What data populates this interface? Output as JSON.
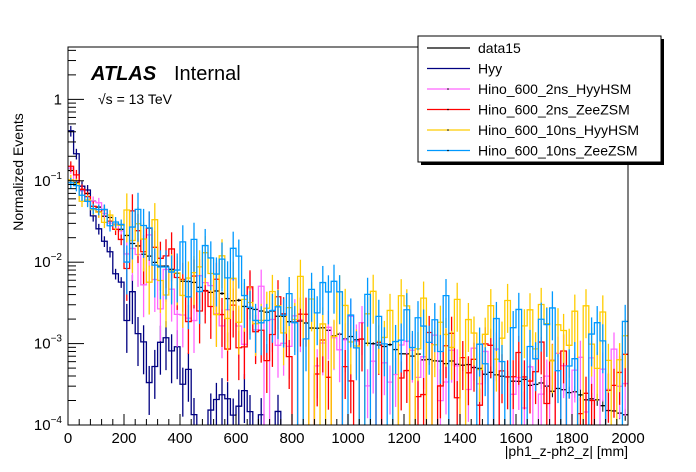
{
  "chart_data": {
    "type": "line",
    "subtype": "histogram-step-log",
    "title": "",
    "xlabel": "|ph1_z-ph2_z| [mm]",
    "ylabel": "Normalized Events",
    "xlim": [
      0,
      2000
    ],
    "ylim": [
      0.0001,
      4.4
    ],
    "yscale": "log",
    "grid": false,
    "x_ticks": [
      0,
      200,
      400,
      600,
      800,
      1000,
      1200,
      1400,
      1600,
      1800,
      2000
    ],
    "x_tick_labels": [
      "0",
      "200",
      "400",
      "600",
      "800",
      "1000",
      "1200",
      "1400",
      "1600",
      "1800",
      "2000"
    ],
    "y_ticks": [
      0.0001,
      0.001,
      0.01,
      0.1,
      1
    ],
    "y_tick_labels": [
      {
        "base": "10",
        "exp": "−4"
      },
      {
        "base": "10",
        "exp": "−3"
      },
      {
        "base": "10",
        "exp": "−2"
      },
      {
        "base": "10",
        "exp": "−1"
      },
      {
        "base": "1",
        "exp": ""
      }
    ],
    "annotations": {
      "experiment": "ATLAS",
      "status": "Internal",
      "energy": "√s = 13 TeV"
    },
    "legend_position": "top-right",
    "bin_width": 20,
    "series": [
      {
        "name": "data15",
        "color": "#000000",
        "style": "markers",
        "points": [
          [
            10,
            0.13
          ],
          [
            50,
            0.075
          ],
          [
            100,
            0.05
          ],
          [
            150,
            0.033
          ],
          [
            200,
            0.022
          ],
          [
            250,
            0.015
          ],
          [
            300,
            0.011
          ],
          [
            350,
            0.0085
          ],
          [
            400,
            0.0065
          ],
          [
            500,
            0.0045
          ],
          [
            600,
            0.0033
          ],
          [
            700,
            0.0025
          ],
          [
            800,
            0.0019
          ],
          [
            900,
            0.0015
          ],
          [
            1000,
            0.0012
          ],
          [
            1100,
            0.001
          ],
          [
            1200,
            0.0008
          ],
          [
            1300,
            0.00065
          ],
          [
            1400,
            0.00055
          ],
          [
            1500,
            0.00045
          ],
          [
            1600,
            0.00035
          ],
          [
            1700,
            0.0003
          ],
          [
            1800,
            0.00025
          ],
          [
            1900,
            0.00018
          ],
          [
            2000,
            0.00012
          ]
        ]
      },
      {
        "name": "Hyy",
        "color": "#000080",
        "style": "step",
        "points": [
          [
            10,
            0.4
          ],
          [
            30,
            0.2
          ],
          [
            50,
            0.1
          ],
          [
            100,
            0.035
          ],
          [
            150,
            0.012
          ],
          [
            200,
            0.004
          ],
          [
            250,
            0.0016
          ],
          [
            300,
            0.0008
          ],
          [
            350,
            0.0006
          ],
          [
            400,
            0.00028
          ],
          [
            450,
            0.0002
          ],
          [
            500,
            0.00014
          ],
          [
            550,
            0.00016
          ],
          [
            600,
            0.00013
          ],
          [
            650,
            0.0001
          ],
          [
            700,
            0.00012
          ],
          [
            750,
            0.0001
          ]
        ]
      },
      {
        "name": "Hino_600_2ns_HyyHSM",
        "color": "#ff66ff",
        "style": "step",
        "points": [
          [
            10,
            0.15
          ],
          [
            50,
            0.08
          ],
          [
            100,
            0.05
          ],
          [
            150,
            0.03
          ],
          [
            200,
            0.02
          ],
          [
            250,
            0.013
          ],
          [
            300,
            0.009
          ],
          [
            350,
            0.0065
          ],
          [
            400,
            0.005
          ],
          [
            500,
            0.0035
          ],
          [
            600,
            0.0025
          ],
          [
            700,
            0.0018
          ],
          [
            800,
            0.0014
          ],
          [
            1000,
            0.0009
          ],
          [
            1200,
            0.0006
          ],
          [
            1400,
            0.0005
          ],
          [
            1600,
            0.0004
          ],
          [
            1800,
            0.0004
          ],
          [
            2000,
            0.0003
          ]
        ]
      },
      {
        "name": "Hino_600_2ns_ZeeZSM",
        "color": "#ff0000",
        "style": "step",
        "points": [
          [
            10,
            0.14
          ],
          [
            50,
            0.085
          ],
          [
            100,
            0.052
          ],
          [
            150,
            0.032
          ],
          [
            200,
            0.021
          ],
          [
            250,
            0.013
          ],
          [
            300,
            0.009
          ],
          [
            350,
            0.006
          ],
          [
            400,
            0.0045
          ],
          [
            500,
            0.003
          ],
          [
            600,
            0.002
          ],
          [
            700,
            0.0016
          ],
          [
            800,
            0.0012
          ],
          [
            1000,
            0.0008
          ],
          [
            1200,
            0.0006
          ],
          [
            1400,
            0.0005
          ],
          [
            1600,
            0.0004
          ],
          [
            1800,
            0.0004
          ],
          [
            2000,
            0.0003
          ]
        ]
      },
      {
        "name": "Hino_600_10ns_HyyHSM",
        "color": "#ffcc00",
        "style": "step",
        "points": [
          [
            10,
            0.11
          ],
          [
            50,
            0.065
          ],
          [
            100,
            0.045
          ],
          [
            150,
            0.032
          ],
          [
            200,
            0.024
          ],
          [
            250,
            0.018
          ],
          [
            300,
            0.014
          ],
          [
            350,
            0.011
          ],
          [
            400,
            0.009
          ],
          [
            500,
            0.007
          ],
          [
            600,
            0.005
          ],
          [
            700,
            0.004
          ],
          [
            800,
            0.003
          ],
          [
            1000,
            0.0022
          ],
          [
            1200,
            0.0017
          ],
          [
            1400,
            0.0014
          ],
          [
            1600,
            0.0012
          ],
          [
            1800,
            0.0011
          ],
          [
            2000,
            0.001
          ]
        ]
      },
      {
        "name": "Hino_600_10ns_ZeeZSM",
        "color": "#0099ff",
        "style": "step",
        "points": [
          [
            10,
            0.11
          ],
          [
            50,
            0.068
          ],
          [
            100,
            0.047
          ],
          [
            150,
            0.033
          ],
          [
            200,
            0.024
          ],
          [
            250,
            0.018
          ],
          [
            300,
            0.014
          ],
          [
            350,
            0.011
          ],
          [
            400,
            0.009
          ],
          [
            500,
            0.007
          ],
          [
            600,
            0.0055
          ],
          [
            700,
            0.0042
          ],
          [
            800,
            0.0033
          ],
          [
            1000,
            0.0024
          ],
          [
            1200,
            0.0018
          ],
          [
            1400,
            0.0015
          ],
          [
            1600,
            0.0013
          ],
          [
            1800,
            0.0012
          ],
          [
            2000,
            0.001
          ]
        ]
      }
    ]
  }
}
